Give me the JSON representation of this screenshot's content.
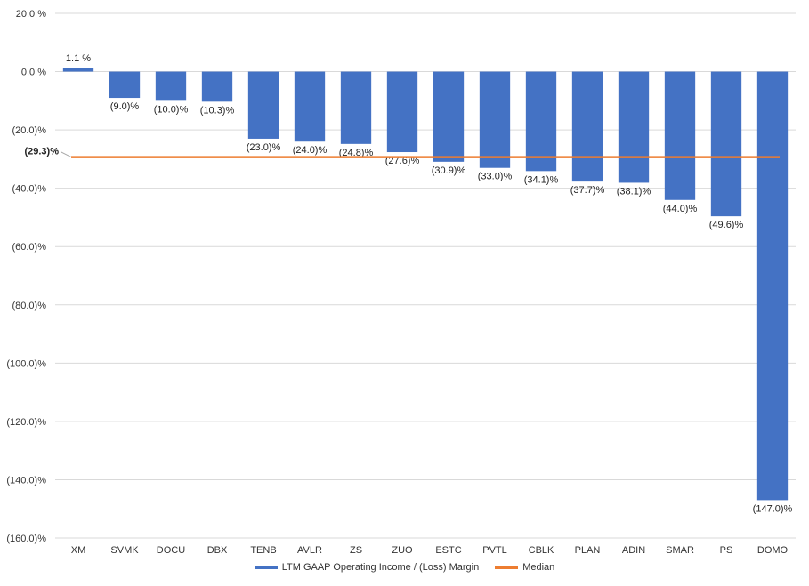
{
  "chart_data": {
    "type": "bar",
    "categories": [
      "XM",
      "SVMK",
      "DOCU",
      "DBX",
      "TENB",
      "AVLR",
      "ZS",
      "ZUO",
      "ESTC",
      "PVTL",
      "CBLK",
      "PLAN",
      "ADIN",
      "SMAR",
      "PS",
      "DOMO"
    ],
    "series": [
      {
        "name": "LTM GAAP Operating Income / (Loss) Margin",
        "color": "#4472C4",
        "values": [
          1.1,
          -9.0,
          -10.0,
          -10.3,
          -23.0,
          -24.0,
          -24.8,
          -27.6,
          -30.9,
          -33.0,
          -34.1,
          -37.7,
          -38.1,
          -44.0,
          -49.6,
          -147.0
        ],
        "labels": [
          "1.1 %",
          "(9.0)%",
          "(10.0)%",
          "(10.3)%",
          "(23.0)%",
          "(24.0)%",
          "(24.8)%",
          "(27.6)%",
          "(30.9)%",
          "(33.0)%",
          "(34.1)%",
          "(37.7)%",
          "(38.1)%",
          "(44.0)%",
          "(49.6)%",
          "(147.0)%"
        ]
      }
    ],
    "median": {
      "name": "Median",
      "value": -29.3,
      "label": "(29.3)%",
      "color": "#ED7D31"
    },
    "ylim": [
      -160,
      20
    ],
    "yticks": [
      20,
      0,
      -20,
      -40,
      -60,
      -80,
      -100,
      -120,
      -140,
      -160
    ],
    "ytick_labels": [
      "20.0 %",
      "0.0 %",
      "(20.0)%",
      "(40.0)%",
      "(60.0)%",
      "(80.0)%",
      "(100.0)%",
      "(120.0)%",
      "(140.0)%",
      "(160.0)%"
    ],
    "grid": true,
    "legend": "bottom-center"
  }
}
